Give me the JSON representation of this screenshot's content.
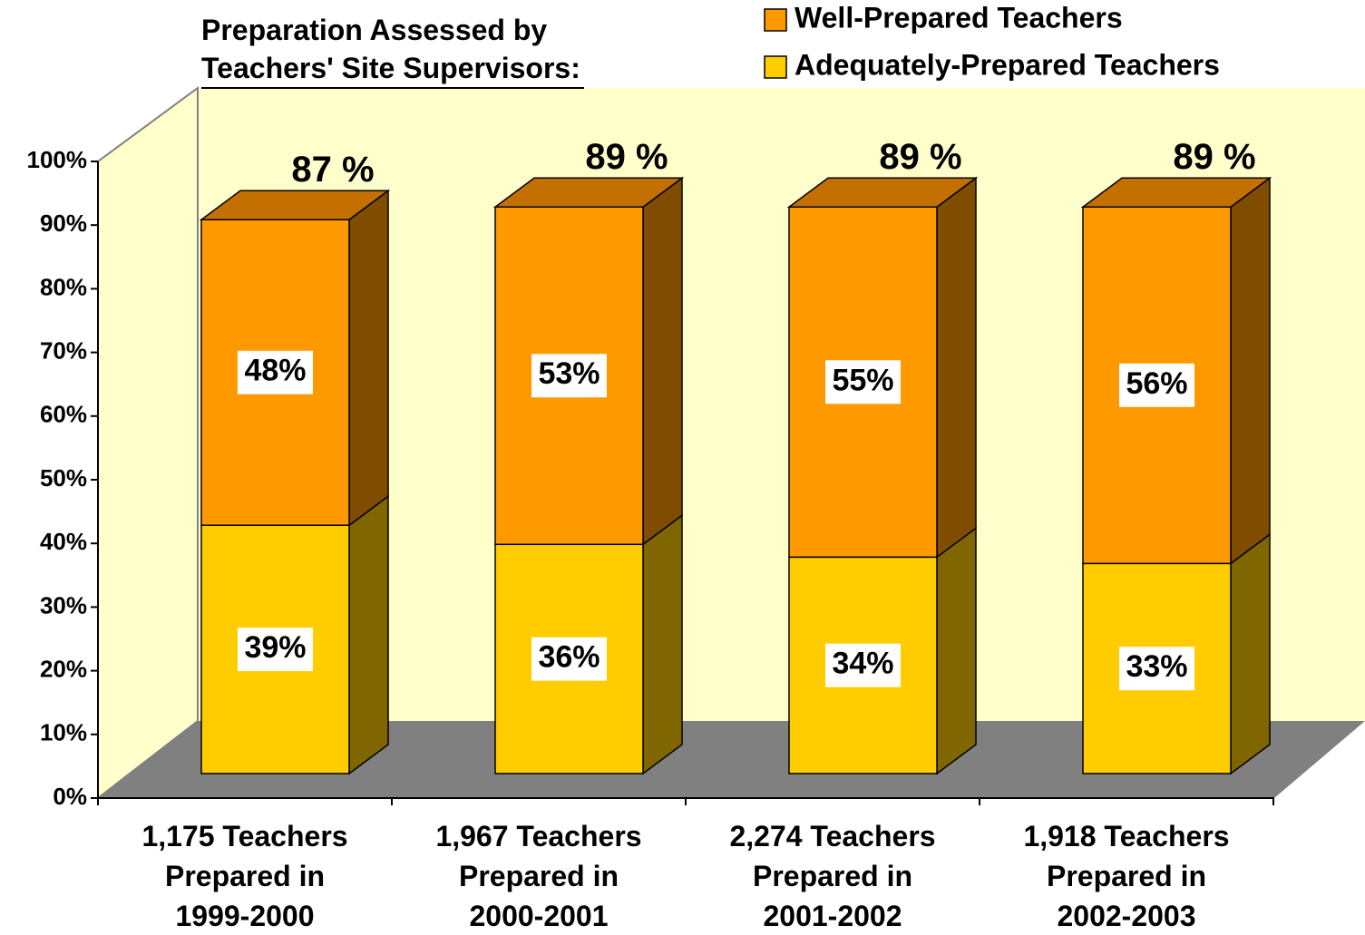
{
  "chart_data": {
    "type": "bar3d_stacked",
    "title": "Preparation Assessed by\nTeachers' Site Supervisors:",
    "categories": [
      "1,175 Teachers\nPrepared in\n1999-2000",
      "1,967 Teachers\nPrepared in\n2000-2001",
      "2,274 Teachers\nPrepared in\n2001-2002",
      "1,918 Teachers\nPrepared in\n2002-2003"
    ],
    "series": [
      {
        "name": "Adequately-Prepared Teachers",
        "color": "#ffcc00",
        "side_color": "#806600",
        "values": [
          39,
          36,
          34,
          33
        ],
        "value_labels": [
          "39%",
          "36%",
          "34%",
          "33%"
        ]
      },
      {
        "name": "Well-Prepared Teachers",
        "color": "#ff9900",
        "side_color": "#804c00",
        "top_color": "#c47000",
        "values": [
          48,
          53,
          55,
          56
        ],
        "value_labels": [
          "48%",
          "53%",
          "55%",
          "56%"
        ]
      }
    ],
    "totals": [
      87,
      89,
      89,
      89
    ],
    "total_labels": [
      "87 %",
      "89 %",
      "89 %",
      "89 %"
    ],
    "ylim": [
      0,
      100
    ],
    "yticks": [
      {
        "value": 0,
        "label": "0%"
      },
      {
        "value": 10,
        "label": "10%"
      },
      {
        "value": 20,
        "label": "20%"
      },
      {
        "value": 30,
        "label": "30%"
      },
      {
        "value": 40,
        "label": "40%"
      },
      {
        "value": 50,
        "label": "50%"
      },
      {
        "value": 60,
        "label": "60%"
      },
      {
        "value": 70,
        "label": "70%"
      },
      {
        "value": 80,
        "label": "80%"
      },
      {
        "value": 90,
        "label": "90%"
      },
      {
        "value": 100,
        "label": "100%"
      }
    ],
    "grid": false,
    "legend": "top-right"
  }
}
